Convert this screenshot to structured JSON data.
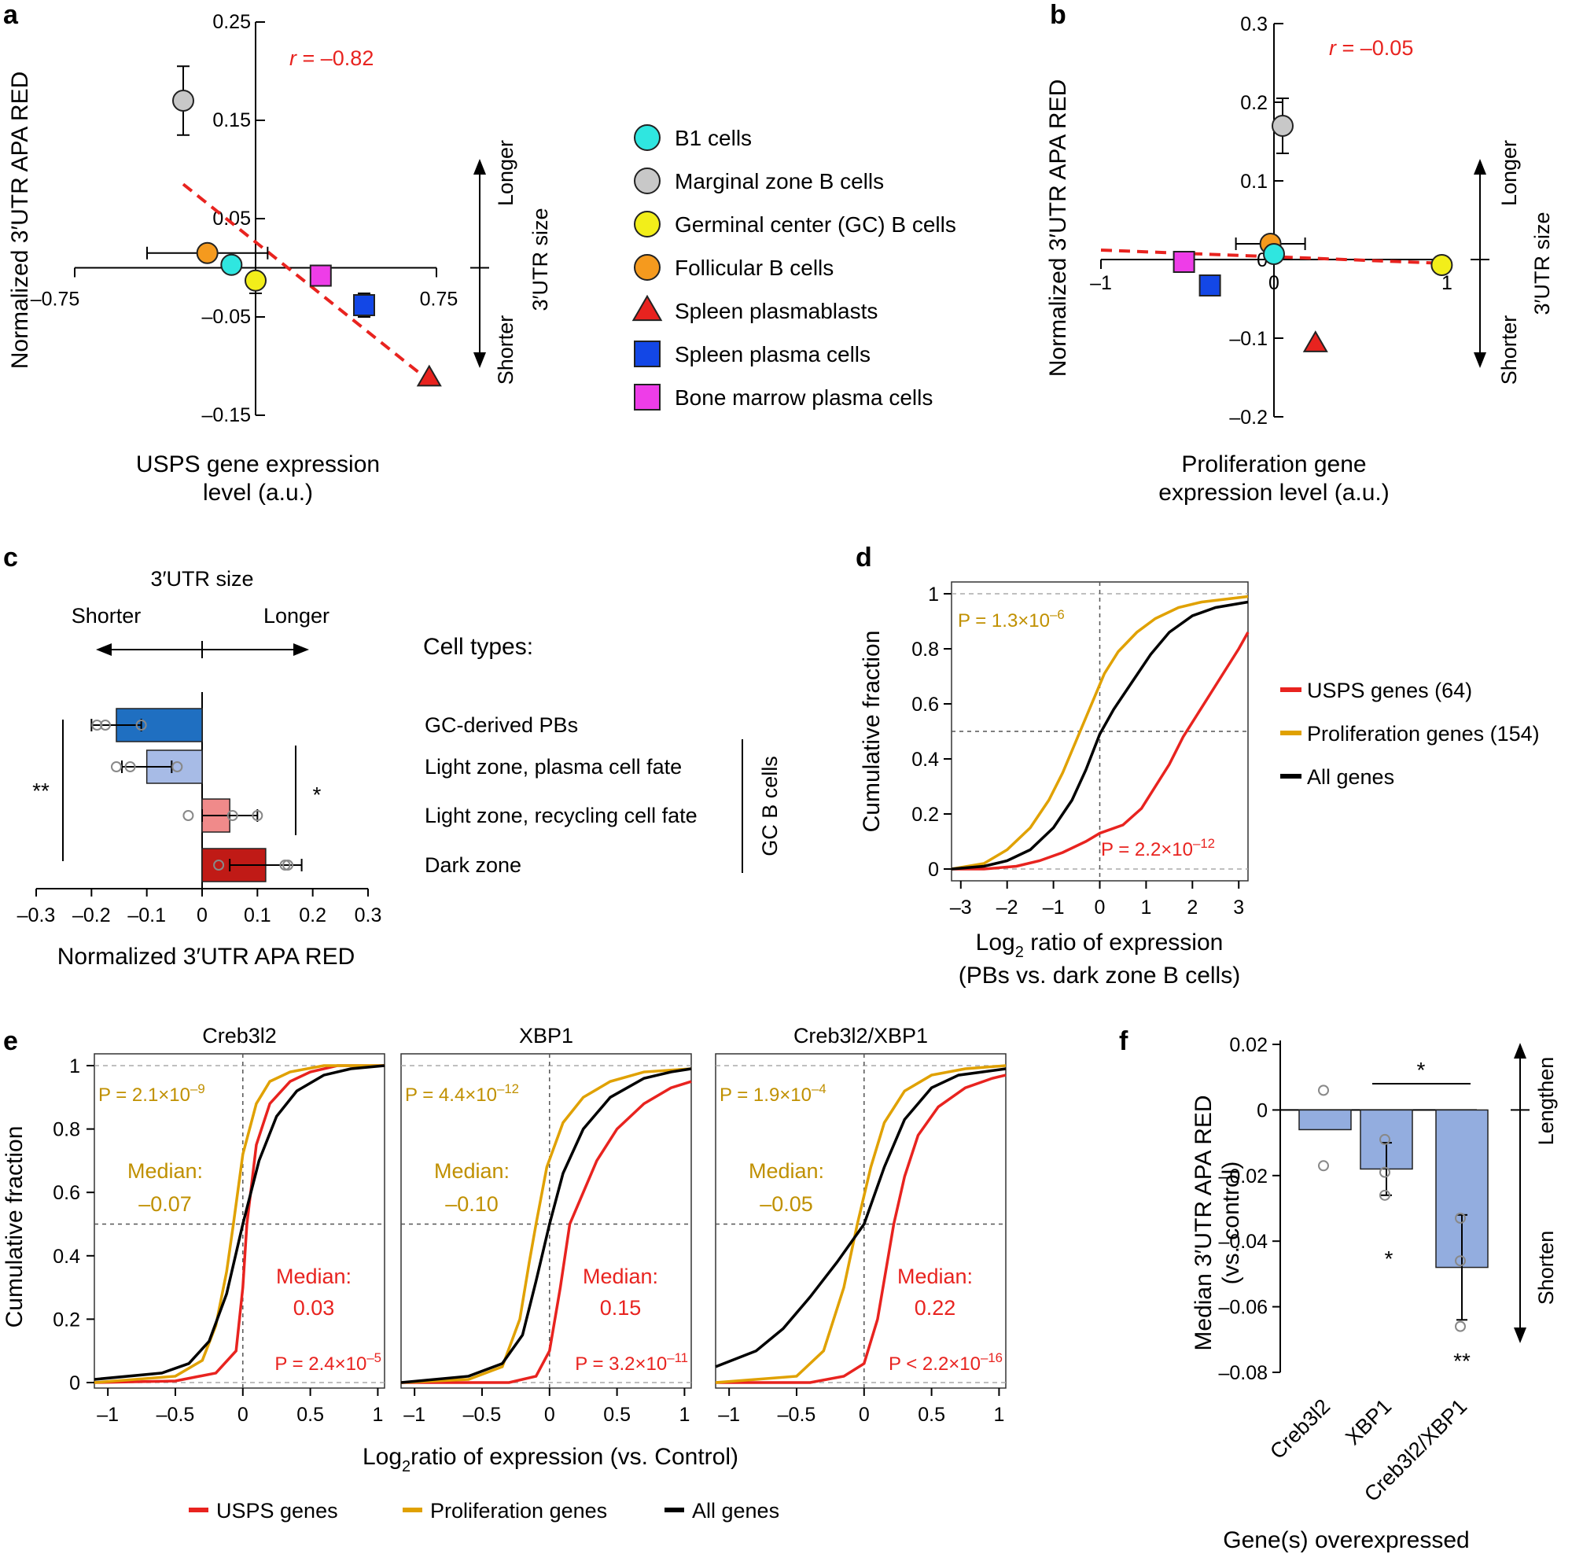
{
  "colors": {
    "red": "#e8231f",
    "gold": "#e0a100",
    "gold_text": "#c09000",
    "black": "#000000",
    "cyan": "#2fe6e0",
    "gray": "#c8c8c8",
    "yellow": "#f2ee1a",
    "orange": "#f59a1e",
    "blue": "#1347e6",
    "magenta": "#ee3de8",
    "bar_darkblue": "#1f6fc1",
    "bar_lightblue": "#a7bbe6",
    "bar_pink": "#f08a8a",
    "bar_darkred": "#c01a16",
    "bar_f": "#93addf",
    "greydash": "#aaaaaa"
  },
  "panel_labels": [
    "a",
    "b",
    "c",
    "d",
    "e",
    "f"
  ],
  "legend_ab": [
    {
      "label": "B1 cells",
      "shape": "circle",
      "color": "#2fe6e0"
    },
    {
      "label": "Marginal zone B cells",
      "shape": "circle",
      "color": "#c8c8c8"
    },
    {
      "label": "Germinal center (GC) B cells",
      "shape": "circle",
      "color": "#f2ee1a"
    },
    {
      "label": "Follicular B cells",
      "shape": "circle",
      "color": "#f59a1e"
    },
    {
      "label": "Spleen plasmablasts",
      "shape": "triangle",
      "color": "#e8231f"
    },
    {
      "label": "Spleen plasma cells",
      "shape": "square",
      "color": "#1347e6"
    },
    {
      "label": "Bone marrow plasma cells",
      "shape": "square",
      "color": "#ee3de8"
    }
  ],
  "side_labels": {
    "longer": "Longer",
    "shorter": "Shorter",
    "utr_size": "3′UTR size",
    "lengthen": "Lengthen",
    "shorten": "Shorten"
  },
  "panel_c_text": {
    "utr_size": "3′UTR size",
    "shorter": "Shorter",
    "longer": "Longer",
    "cell_types_title": "Cell types:",
    "gc_b_cells": "GC B cells",
    "sig_left": "**",
    "sig_right": "*"
  },
  "panel_d_legend": [
    "USPS genes (64)",
    "Proliferation genes (154)",
    "All genes"
  ],
  "panel_e_legend": [
    "USPS genes",
    "Proliferation genes",
    "All genes"
  ],
  "panel_f_text": {
    "sig_top": "*",
    "sig_xbp1": "*",
    "sig_both": "**"
  },
  "chart_data": [
    {
      "panel": "a",
      "type": "scatter",
      "xlabel": "USPS gene expression level (a.u.)",
      "ylabel": "Normalized 3′UTR APA RED",
      "xlim": [
        -0.75,
        0.75
      ],
      "ylim": [
        -0.15,
        0.25
      ],
      "x_ticks": [
        "–0.75",
        "0.75"
      ],
      "y_ticks": [
        {
          "value": 0.25,
          "label": "0.25"
        },
        {
          "value": 0.15,
          "label": "0.15"
        },
        {
          "value": 0.05,
          "label": "0.05"
        },
        {
          "value": -0.05,
          "label": "–0.05"
        },
        {
          "value": -0.15,
          "label": "–0.15"
        }
      ],
      "annotation": "r = –0.82",
      "annotation_r": "r",
      "annotation_rest": " = –0.82",
      "regression": {
        "x": [
          -0.3,
          0.72
        ],
        "y": [
          0.085,
          -0.115
        ]
      },
      "points": [
        {
          "name": "Marginal zone B cells",
          "x": -0.3,
          "y": 0.17,
          "yerr": 0.035,
          "xerr": 0
        },
        {
          "name": "Follicular B cells",
          "x": -0.2,
          "y": 0.015,
          "yerr": 0,
          "xerr": 0.25
        },
        {
          "name": "B1 cells",
          "x": -0.1,
          "y": 0.003,
          "yerr": 0,
          "xerr": 0
        },
        {
          "name": "Germinal center (GC) B cells",
          "x": 0.0,
          "y": -0.013,
          "yerr": 0.013,
          "xerr": 0
        },
        {
          "name": "Bone marrow plasma cells",
          "x": 0.27,
          "y": -0.008,
          "yerr": 0,
          "xerr": 0
        },
        {
          "name": "Spleen plasma cells",
          "x": 0.45,
          "y": -0.038,
          "yerr": 0.012,
          "xerr": 0.03
        },
        {
          "name": "Spleen plasmablasts",
          "x": 0.72,
          "y": -0.112,
          "yerr": 0,
          "xerr": 0
        }
      ]
    },
    {
      "panel": "b",
      "type": "scatter",
      "xlabel": "Proliferation gene expression level (a.u.)",
      "ylabel": "Normalized 3′UTR APA RED",
      "xlim": [
        -1,
        1
      ],
      "ylim": [
        -0.2,
        0.3
      ],
      "x_ticks": [
        "–1",
        "0",
        "1"
      ],
      "y_ticks": [
        {
          "value": 0.3,
          "label": "0.3"
        },
        {
          "value": 0.2,
          "label": "0.2"
        },
        {
          "value": 0.1,
          "label": "0.1"
        },
        {
          "value": 0,
          "label": "0"
        },
        {
          "value": -0.1,
          "label": "–0.1"
        },
        {
          "value": -0.2,
          "label": "–0.2"
        }
      ],
      "annotation": "r = –0.05",
      "annotation_r": "r",
      "annotation_rest": " = –0.05",
      "regression": {
        "x": [
          -1,
          1
        ],
        "y": [
          0.012,
          -0.005
        ]
      },
      "points": [
        {
          "name": "Marginal zone B cells",
          "x": 0.05,
          "y": 0.17,
          "yerr": 0.035,
          "xerr": 0.02
        },
        {
          "name": "Follicular B cells",
          "x": -0.02,
          "y": 0.02,
          "yerr": 0,
          "xerr": 0.2
        },
        {
          "name": "B1 cells",
          "x": 0.0,
          "y": 0.007,
          "yerr": 0,
          "xerr": 0
        },
        {
          "name": "Germinal center (GC) B cells",
          "x": 0.97,
          "y": -0.007,
          "yerr": 0,
          "xerr": 0
        },
        {
          "name": "Bone marrow plasma cells",
          "x": -0.52,
          "y": -0.003,
          "yerr": 0,
          "xerr": 0
        },
        {
          "name": "Spleen plasma cells",
          "x": -0.37,
          "y": -0.033,
          "yerr": 0.013,
          "xerr": 0.03
        },
        {
          "name": "Spleen plasmablasts",
          "x": 0.24,
          "y": -0.107,
          "yerr": 0,
          "xerr": 0
        }
      ]
    },
    {
      "panel": "c",
      "type": "bar",
      "orientation": "horizontal",
      "xlabel": "Normalized 3′UTR APA RED",
      "xlim": [
        -0.3,
        0.3
      ],
      "x_ticks": [
        "–0.3",
        "–0.2",
        "–0.1",
        "0",
        "0.1",
        "0.2",
        "0.3"
      ],
      "categories": [
        "GC-derived PBs",
        "Light zone, plasma cell fate",
        "Light zone, recycling cell fate",
        "Dark zone"
      ],
      "values": [
        -0.155,
        -0.1,
        0.05,
        0.115
      ],
      "err": [
        0.045,
        0.045,
        0.05,
        0.065
      ],
      "replicates": [
        [
          -0.19,
          -0.175,
          -0.11
        ],
        [
          -0.155,
          -0.13,
          -0.045
        ],
        [
          -0.025,
          0.055,
          0.1
        ],
        [
          0.03,
          0.15,
          0.155
        ]
      ]
    },
    {
      "panel": "d",
      "type": "line",
      "xlabel_main": "Log",
      "xlabel_sub": "2",
      "xlabel_rest": " ratio of expression",
      "xlabel_line2": "(PBs vs. dark zone B cells)",
      "ylabel": "Cumulative fraction",
      "xlim": [
        -3.2,
        3.2
      ],
      "ylim": [
        0,
        1
      ],
      "x_ticks": [
        "–3",
        "–2",
        "–1",
        "0",
        "1",
        "2",
        "3"
      ],
      "y_ticks": [
        "0",
        "0.2",
        "0.4",
        "0.6",
        "0.8",
        "1"
      ],
      "p_gold_base": "P = 1.3×10",
      "p_gold_exp": "–6",
      "p_red_base": "P = 2.2×10",
      "p_red_exp": "–12",
      "series": [
        {
          "name": "USPS genes (64)",
          "color": "#e8231f",
          "x": [
            -3.2,
            -2.5,
            -1.8,
            -1.3,
            -0.8,
            -0.3,
            0,
            0.5,
            0.9,
            1.2,
            1.5,
            1.8,
            2.1,
            2.4,
            2.7,
            3.0,
            3.2
          ],
          "y": [
            0,
            0,
            0.01,
            0.03,
            0.06,
            0.1,
            0.13,
            0.16,
            0.22,
            0.3,
            0.38,
            0.48,
            0.56,
            0.64,
            0.72,
            0.8,
            0.86
          ]
        },
        {
          "name": "Proliferation genes (154)",
          "color": "#e0a100",
          "x": [
            -3.2,
            -2.5,
            -2,
            -1.5,
            -1.1,
            -0.8,
            -0.5,
            -0.3,
            -0.1,
            0.1,
            0.4,
            0.8,
            1.2,
            1.7,
            2.2,
            2.7,
            3.2
          ],
          "y": [
            0,
            0.02,
            0.07,
            0.15,
            0.25,
            0.35,
            0.47,
            0.55,
            0.63,
            0.71,
            0.79,
            0.86,
            0.91,
            0.95,
            0.97,
            0.98,
            0.99
          ]
        },
        {
          "name": "All genes",
          "color": "#000000",
          "x": [
            -3.2,
            -2.5,
            -2,
            -1.5,
            -1,
            -0.6,
            -0.3,
            0,
            0.3,
            0.7,
            1.1,
            1.5,
            2,
            2.5,
            3.2
          ],
          "y": [
            0,
            0.01,
            0.03,
            0.07,
            0.15,
            0.25,
            0.36,
            0.49,
            0.58,
            0.68,
            0.78,
            0.86,
            0.92,
            0.95,
            0.97
          ]
        }
      ]
    },
    {
      "panel": "e",
      "type": "line",
      "xlabel_main": "Log",
      "xlabel_sub": "2",
      "xlabel_rest": "ratio of expression (vs. Control)",
      "ylabel": "Cumulative fraction",
      "xlim": [
        -1.1,
        1.05
      ],
      "ylim": [
        0,
        1
      ],
      "x_ticks": [
        "–1",
        "–0.5",
        "0",
        "0.5",
        "1"
      ],
      "y_ticks": [
        "0",
        "0.2",
        "0.4",
        "0.6",
        "0.8",
        "1"
      ],
      "subplots": [
        {
          "title": "Creb3l2",
          "p_gold_base": "P = 2.1×10",
          "p_gold_exp": "–9",
          "p_red_base": "P = 2.4×10",
          "p_red_exp": "–5",
          "median_label": "Median:",
          "median_gold": "–0.07",
          "median_red": "0.03",
          "series": [
            {
              "name": "USPS genes",
              "color": "#e8231f",
              "x": [
                -1.1,
                -0.5,
                -0.2,
                -0.05,
                0,
                0.03,
                0.1,
                0.2,
                0.35,
                0.5,
                0.7,
                1.05
              ],
              "y": [
                0,
                0.005,
                0.03,
                0.1,
                0.3,
                0.5,
                0.75,
                0.88,
                0.95,
                0.98,
                1,
                1
              ]
            },
            {
              "name": "Proliferation genes",
              "color": "#e0a100",
              "x": [
                -1.1,
                -0.5,
                -0.3,
                -0.2,
                -0.12,
                -0.07,
                0,
                0.1,
                0.2,
                0.35,
                0.6,
                1.05
              ],
              "y": [
                0,
                0.02,
                0.07,
                0.18,
                0.35,
                0.5,
                0.72,
                0.88,
                0.95,
                0.98,
                1,
                1
              ]
            },
            {
              "name": "All genes",
              "color": "#000000",
              "x": [
                -1.1,
                -0.6,
                -0.4,
                -0.25,
                -0.12,
                0,
                0.12,
                0.25,
                0.4,
                0.6,
                0.8,
                1.05
              ],
              "y": [
                0.01,
                0.03,
                0.06,
                0.13,
                0.28,
                0.5,
                0.7,
                0.84,
                0.92,
                0.97,
                0.99,
                1
              ]
            }
          ]
        },
        {
          "title": "XBP1",
          "p_gold_base": "P = 4.4×10",
          "p_gold_exp": "–12",
          "p_red_base": "P = 3.2×10",
          "p_red_exp": "–11",
          "median_label": "Median:",
          "median_gold": "–0.10",
          "median_red": "0.15",
          "series": [
            {
              "name": "USPS genes",
              "color": "#e8231f",
              "x": [
                -1.1,
                -0.3,
                -0.1,
                0,
                0.08,
                0.15,
                0.25,
                0.35,
                0.5,
                0.7,
                0.9,
                1.05
              ],
              "y": [
                0,
                0,
                0.02,
                0.1,
                0.3,
                0.5,
                0.6,
                0.7,
                0.8,
                0.88,
                0.93,
                0.95
              ]
            },
            {
              "name": "Proliferation genes",
              "color": "#e0a100",
              "x": [
                -1.1,
                -0.6,
                -0.35,
                -0.22,
                -0.15,
                -0.1,
                -0.02,
                0.1,
                0.25,
                0.45,
                0.7,
                1.05
              ],
              "y": [
                0,
                0.01,
                0.05,
                0.2,
                0.38,
                0.5,
                0.68,
                0.82,
                0.9,
                0.95,
                0.98,
                0.99
              ]
            },
            {
              "name": "All genes",
              "color": "#000000",
              "x": [
                -1.1,
                -0.6,
                -0.35,
                -0.2,
                -0.1,
                0,
                0.1,
                0.25,
                0.45,
                0.7,
                0.9,
                1.05
              ],
              "y": [
                0,
                0.02,
                0.06,
                0.15,
                0.32,
                0.5,
                0.66,
                0.8,
                0.9,
                0.96,
                0.98,
                0.99
              ]
            }
          ]
        },
        {
          "title": "Creb3l2/XBP1",
          "p_gold_base": "P = 1.9×10",
          "p_gold_exp": "–4",
          "p_red_base": "P < 2.2×10",
          "p_red_exp": "–16",
          "median_label": "Median:",
          "median_gold": "–0.05",
          "median_red": "0.22",
          "series": [
            {
              "name": "USPS genes",
              "color": "#e8231f",
              "x": [
                -1.1,
                -0.4,
                -0.15,
                0,
                0.1,
                0.22,
                0.3,
                0.4,
                0.55,
                0.75,
                0.95,
                1.05
              ],
              "y": [
                0,
                0,
                0.02,
                0.06,
                0.2,
                0.5,
                0.65,
                0.78,
                0.87,
                0.93,
                0.96,
                0.97
              ]
            },
            {
              "name": "Proliferation genes",
              "color": "#e0a100",
              "x": [
                -1.1,
                -0.5,
                -0.3,
                -0.15,
                -0.05,
                0.05,
                0.15,
                0.3,
                0.5,
                0.75,
                1.05
              ],
              "y": [
                0,
                0.02,
                0.1,
                0.3,
                0.5,
                0.68,
                0.82,
                0.92,
                0.97,
                0.99,
                1
              ]
            },
            {
              "name": "All genes",
              "color": "#000000",
              "x": [
                -1.1,
                -0.8,
                -0.6,
                -0.4,
                -0.2,
                0,
                0.15,
                0.3,
                0.5,
                0.7,
                1.05
              ],
              "y": [
                0.05,
                0.1,
                0.17,
                0.27,
                0.38,
                0.5,
                0.68,
                0.83,
                0.93,
                0.97,
                0.99
              ]
            }
          ]
        }
      ]
    },
    {
      "panel": "f",
      "type": "bar",
      "xlabel": "Gene(s) overexpressed",
      "ylabel_line1": "Median 3′UTR APA RED",
      "ylabel_line2": "(vs. control)",
      "ylim": [
        -0.08,
        0.02
      ],
      "y_ticks": [
        {
          "value": 0.02,
          "label": "0.02"
        },
        {
          "value": 0,
          "label": "0"
        },
        {
          "value": -0.02,
          "label": "–0.02"
        },
        {
          "value": -0.04,
          "label": "–0.04"
        },
        {
          "value": -0.06,
          "label": "–0.06"
        },
        {
          "value": -0.08,
          "label": "–0.08"
        }
      ],
      "categories": [
        "Creb3l2",
        "XBP1",
        "Creb3l2/XBP1"
      ],
      "values": [
        -0.006,
        -0.018,
        -0.048
      ],
      "err": [
        0,
        0.008,
        0.016
      ],
      "replicates": [
        [
          0.006,
          -0.017
        ],
        [
          -0.009,
          -0.019,
          -0.026
        ],
        [
          -0.033,
          -0.046,
          -0.066
        ]
      ]
    }
  ]
}
